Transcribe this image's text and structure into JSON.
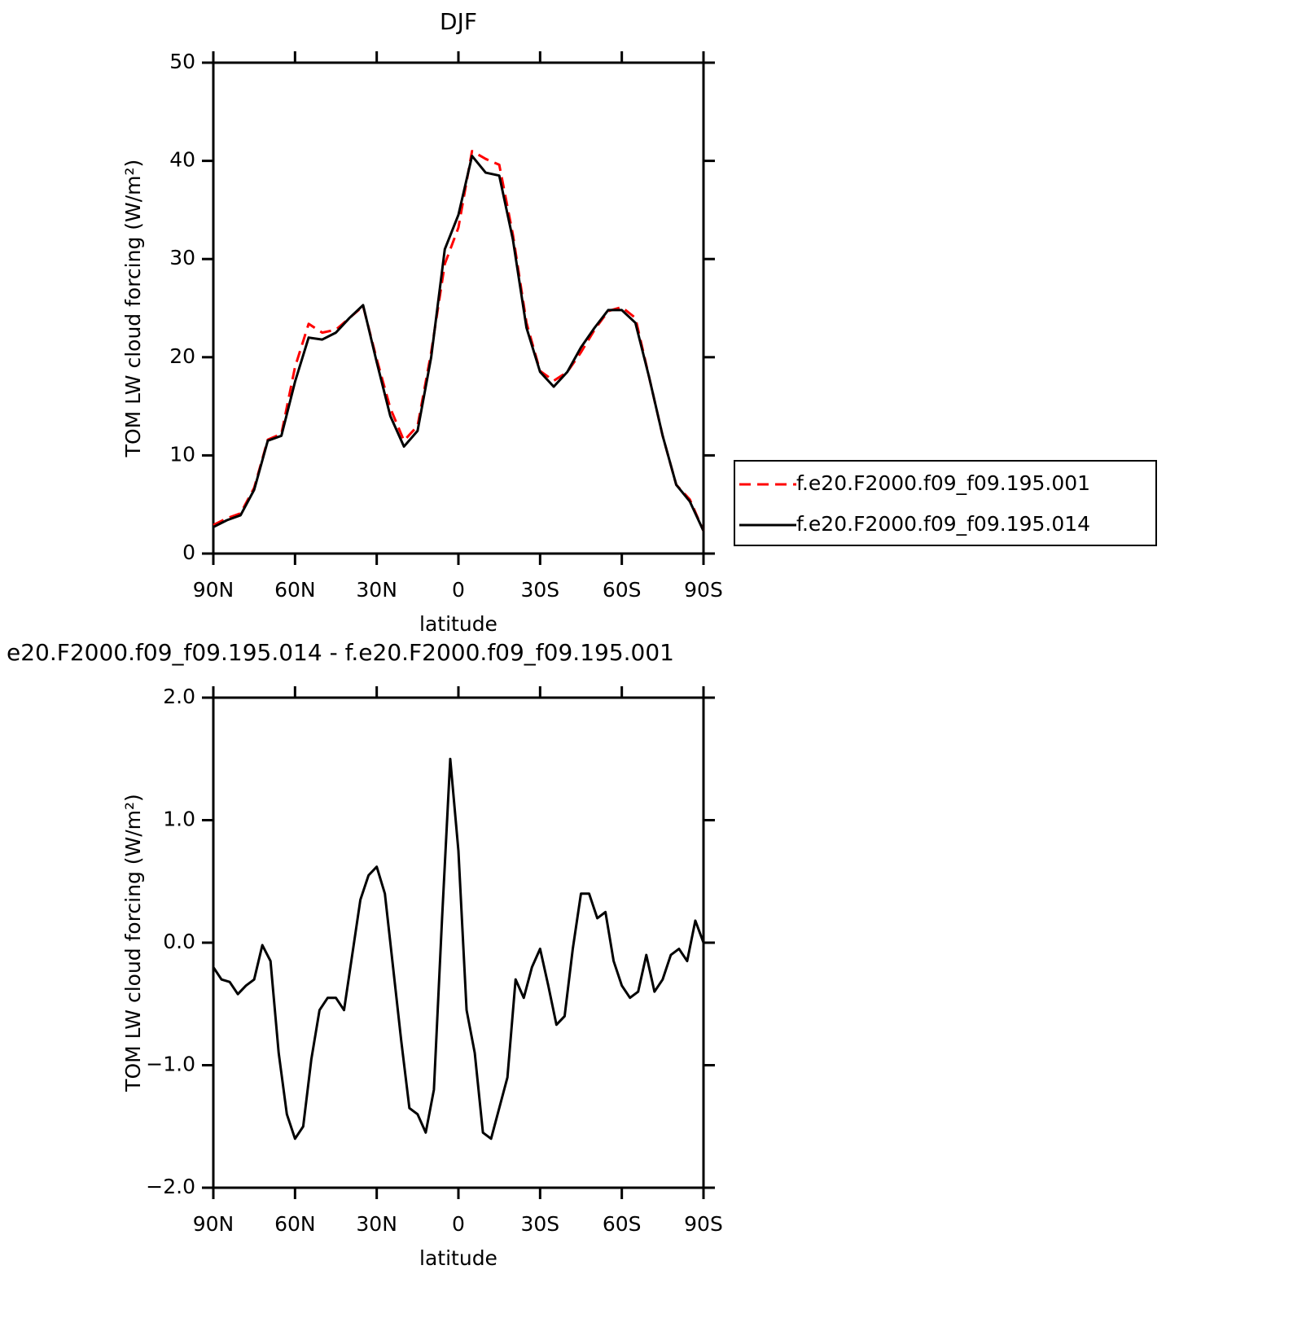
{
  "chart_data": [
    {
      "type": "line",
      "title": "DJF",
      "xlabel": "latitude",
      "ylabel": "TOM LW cloud forcing (W/m²)",
      "x": [
        90,
        85,
        80,
        75,
        70,
        65,
        60,
        55,
        50,
        45,
        40,
        35,
        30,
        25,
        20,
        15,
        10,
        5,
        0,
        -5,
        -10,
        -15,
        -20,
        -25,
        -30,
        -35,
        -40,
        -45,
        -50,
        -55,
        -60,
        -65,
        -70,
        -75,
        -80,
        -85,
        -90
      ],
      "series": [
        {
          "name": "f.e20.F2000.f09_f09.195.001",
          "color": "#ff0000",
          "line_style": "dashed",
          "values": [
            2.9,
            3.6,
            4.1,
            6.7,
            11.6,
            12.2,
            19,
            23.4,
            22.5,
            22.8,
            24,
            25.2,
            19.8,
            14.8,
            11.5,
            13,
            20.5,
            29.5,
            33.2,
            41,
            40.2,
            39.6,
            32.5,
            23.5,
            18.6,
            17.6,
            18.5,
            20.5,
            22.8,
            24.7,
            25.1,
            24,
            18,
            12,
            7,
            5.5,
            2.3
          ]
        },
        {
          "name": "f.e20.F2000.f09_f09.195.014",
          "color": "#000000",
          "line_style": "solid",
          "values": [
            2.7,
            3.4,
            3.9,
            6.5,
            11.5,
            12,
            17.5,
            22,
            21.8,
            22.5,
            24,
            25.3,
            19.5,
            14,
            10.9,
            12.5,
            20,
            31,
            34.5,
            40.5,
            38.8,
            38.5,
            32,
            23,
            18.5,
            17,
            18.5,
            21,
            23,
            24.8,
            24.8,
            23.5,
            18,
            12,
            7,
            5.3,
            2.3
          ]
        }
      ],
      "xlim": [
        90,
        -90
      ],
      "xticks": [
        {
          "value": 90,
          "label": "90N"
        },
        {
          "value": 60,
          "label": "60N"
        },
        {
          "value": 30,
          "label": "30N"
        },
        0,
        {
          "value": -30,
          "label": "30S"
        },
        {
          "value": -60,
          "label": "60S"
        },
        {
          "value": -90,
          "label": "90S"
        }
      ],
      "ylim": [
        0,
        50
      ],
      "yticks": [
        0,
        10,
        20,
        30,
        40,
        50
      ],
      "legend": "right"
    },
    {
      "type": "line",
      "title": "e20.F2000.f09_f09.195.014 - f.e20.F2000.f09_f09.195.001",
      "xlabel": "latitude",
      "ylabel": "TOM LW cloud forcing (W/m²)",
      "x": [
        90,
        87,
        84,
        81,
        78,
        75,
        72,
        69,
        66,
        63,
        60,
        57,
        54,
        51,
        48,
        45,
        42,
        39,
        36,
        33,
        30,
        27,
        24,
        21,
        18,
        15,
        12,
        9,
        6,
        3,
        0,
        -3,
        -6,
        -9,
        -12,
        -15,
        -18,
        -21,
        -24,
        -27,
        -30,
        -33,
        -36,
        -39,
        -42,
        -45,
        -48,
        -51,
        -54,
        -57,
        -60,
        -63,
        -66,
        -69,
        -72,
        -75,
        -78,
        -81,
        -84,
        -87,
        -90
      ],
      "series": [
        {
          "color": "#000000",
          "line_style": "solid",
          "values": [
            -0.2,
            -0.3,
            -0.32,
            -0.42,
            -0.35,
            -0.3,
            -0.02,
            -0.15,
            -0.9,
            -1.4,
            -1.6,
            -1.5,
            -0.95,
            -0.55,
            -0.45,
            -0.45,
            -0.55,
            -0.1,
            0.35,
            0.55,
            0.62,
            0.4,
            -0.2,
            -0.8,
            -1.35,
            -1.4,
            -1.55,
            -1.2,
            0.2,
            1.5,
            0.75,
            -0.55,
            -0.9,
            -1.55,
            -1.6,
            -1.35,
            -1.1,
            -0.3,
            -0.45,
            -0.2,
            -0.05,
            -0.35,
            -0.67,
            -0.6,
            -0.05,
            0.4,
            0.4,
            0.2,
            0.25,
            -0.15,
            -0.35,
            -0.45,
            -0.4,
            -0.1,
            -0.4,
            -0.3,
            -0.1,
            -0.05,
            -0.15,
            0.18,
            0.0
          ]
        }
      ],
      "xlim": [
        90,
        -90
      ],
      "xticks": [
        {
          "value": 90,
          "label": "90N"
        },
        {
          "value": 60,
          "label": "60N"
        },
        {
          "value": 30,
          "label": "30N"
        },
        0,
        {
          "value": -30,
          "label": "30S"
        },
        {
          "value": -60,
          "label": "60S"
        },
        {
          "value": -90,
          "label": "90S"
        }
      ],
      "ylim": [
        -2,
        2
      ],
      "yticks": [
        {
          "value": -2,
          "label": "−2.0"
        },
        {
          "value": -1,
          "label": "−1.0"
        },
        {
          "value": 0,
          "label": "0.0"
        },
        {
          "value": 1,
          "label": "1.0"
        },
        {
          "value": 2,
          "label": "2.0"
        }
      ]
    }
  ]
}
